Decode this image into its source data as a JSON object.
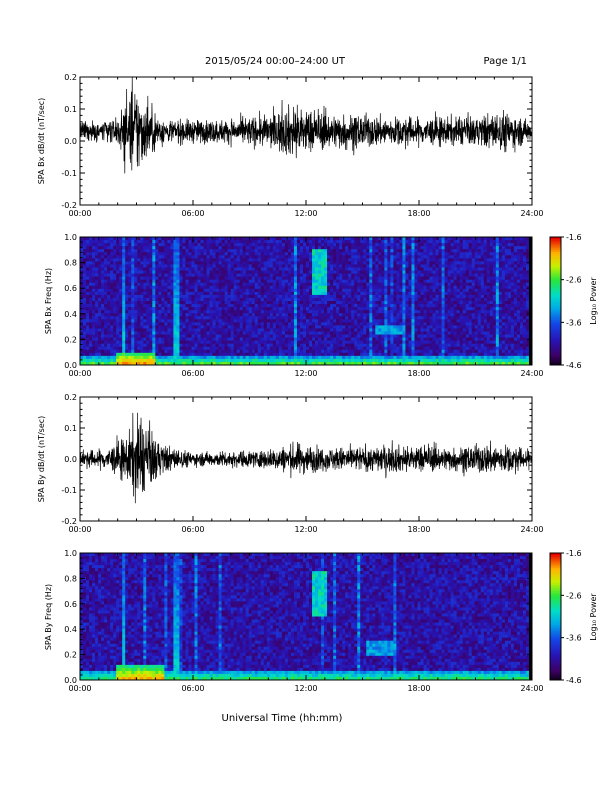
{
  "header": {
    "title": "2015/05/24  00:00–24:00 UT",
    "page": "Page 1/1"
  },
  "footer": {
    "xlabel": "Universal Time (hh:mm)"
  },
  "time_ticks": [
    "00:00",
    "06:00",
    "12:00",
    "18:00",
    "24:00"
  ],
  "colorbar": {
    "label": "Log₁₀ Power",
    "ticks": [
      "-1.6",
      "-2.6",
      "-3.6",
      "-4.6"
    ],
    "range": [
      -4.6,
      -1.6
    ]
  },
  "chart_data": [
    {
      "type": "line",
      "ylabel": "SPA Bx dB/dt (nT/sec)",
      "xlim": [
        0,
        24
      ],
      "ylim": [
        -0.2,
        0.2
      ],
      "yticks": [
        "0.2",
        "0.1",
        "0.0",
        "-0.1",
        "-0.2"
      ],
      "baseline": 0.03,
      "color": "#000000",
      "activity_envelope": [
        {
          "t": 0.0,
          "amp": 0.04
        },
        {
          "t": 2.0,
          "amp": 0.05
        },
        {
          "t": 2.3,
          "amp": 0.12
        },
        {
          "t": 3.0,
          "amp": 0.2
        },
        {
          "t": 3.5,
          "amp": 0.12
        },
        {
          "t": 4.5,
          "amp": 0.05
        },
        {
          "t": 8.0,
          "amp": 0.05
        },
        {
          "t": 10.0,
          "amp": 0.07
        },
        {
          "t": 11.5,
          "amp": 0.12
        },
        {
          "t": 12.5,
          "amp": 0.08
        },
        {
          "t": 15.0,
          "amp": 0.07
        },
        {
          "t": 17.0,
          "amp": 0.06
        },
        {
          "t": 21.0,
          "amp": 0.06
        },
        {
          "t": 22.5,
          "amp": 0.09
        },
        {
          "t": 24.0,
          "amp": 0.04
        }
      ]
    },
    {
      "type": "heatmap",
      "ylabel": "SPA Bx Freq (Hz)",
      "xlim": [
        0,
        24
      ],
      "ylim": [
        0.0,
        1.0
      ],
      "yticks": [
        "1.0",
        "0.8",
        "0.6",
        "0.4",
        "0.2",
        "0.0"
      ],
      "colorbar_label": "Log₁₀ Power",
      "colorbar_range": [
        -4.6,
        -1.6
      ],
      "features": [
        {
          "kind": "low-band",
          "t": [
            0,
            24
          ],
          "f": [
            0.0,
            0.06
          ],
          "level": -2.4
        },
        {
          "kind": "burst",
          "t": [
            2.0,
            4.0
          ],
          "f": [
            0.0,
            0.1
          ],
          "level": -1.8
        },
        {
          "kind": "streak",
          "t": 2.3,
          "level": -3.0
        },
        {
          "kind": "streak",
          "t": 5.1,
          "level": -3.0
        },
        {
          "kind": "blob",
          "t": 12.7,
          "f": [
            0.55,
            0.9
          ],
          "level": -3.0
        },
        {
          "kind": "patch",
          "t": 16.5,
          "f": [
            0.25,
            0.32
          ],
          "level": -3.3
        }
      ]
    },
    {
      "type": "line",
      "ylabel": "SPA By dB/dt (nT/sec)",
      "xlim": [
        0,
        24
      ],
      "ylim": [
        -0.2,
        0.2
      ],
      "yticks": [
        "0.2",
        "0.1",
        "0.0",
        "-0.1",
        "-0.2"
      ],
      "baseline": 0.0,
      "color": "#000000",
      "activity_envelope": [
        {
          "t": 0.0,
          "amp": 0.03
        },
        {
          "t": 1.5,
          "amp": 0.05
        },
        {
          "t": 2.5,
          "amp": 0.1
        },
        {
          "t": 3.0,
          "amp": 0.2
        },
        {
          "t": 3.5,
          "amp": 0.14
        },
        {
          "t": 4.5,
          "amp": 0.06
        },
        {
          "t": 6.0,
          "amp": 0.03
        },
        {
          "t": 10.0,
          "amp": 0.04
        },
        {
          "t": 11.5,
          "amp": 0.07
        },
        {
          "t": 13.0,
          "amp": 0.05
        },
        {
          "t": 17.5,
          "amp": 0.06
        },
        {
          "t": 20.0,
          "amp": 0.05
        },
        {
          "t": 22.0,
          "amp": 0.07
        },
        {
          "t": 24.0,
          "amp": 0.04
        }
      ]
    },
    {
      "type": "heatmap",
      "ylabel": "SPA By Freq (Hz)",
      "xlim": [
        0,
        24
      ],
      "ylim": [
        0.0,
        1.0
      ],
      "yticks": [
        "1.0",
        "0.8",
        "0.6",
        "0.4",
        "0.2",
        "0.0"
      ],
      "colorbar_label": "Log₁₀ Power",
      "colorbar_range": [
        -4.6,
        -1.6
      ],
      "features": [
        {
          "kind": "low-band",
          "t": [
            0,
            24
          ],
          "f": [
            0.0,
            0.08
          ],
          "level": -2.6
        },
        {
          "kind": "burst",
          "t": [
            2.0,
            4.5
          ],
          "f": [
            0.0,
            0.12
          ],
          "level": -1.9
        },
        {
          "kind": "streak",
          "t": 2.3,
          "level": -3.0
        },
        {
          "kind": "streak",
          "t": 5.1,
          "level": -3.0
        },
        {
          "kind": "blob",
          "t": 12.7,
          "f": [
            0.5,
            0.85
          ],
          "level": -3.0
        },
        {
          "kind": "patch",
          "t": 16.0,
          "f": [
            0.2,
            0.3
          ],
          "level": -3.3
        }
      ]
    }
  ]
}
